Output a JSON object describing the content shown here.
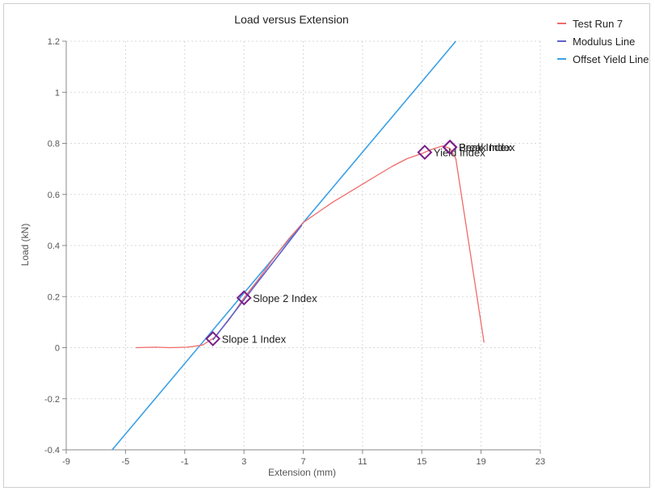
{
  "chart_data": {
    "type": "line",
    "title": "Load versus Extension",
    "xlabel": "Extension (mm)",
    "ylabel": "Load (kN)",
    "xlim": [
      -9,
      23
    ],
    "ylim": [
      -0.4,
      1.2
    ],
    "xticks": [
      -9,
      -5,
      -1,
      3,
      7,
      11,
      15,
      19,
      23
    ],
    "yticks": [
      -0.4,
      -0.2,
      0,
      0.2,
      0.4,
      0.6,
      0.8,
      1,
      1.2
    ],
    "grid": true,
    "legend_position": "top-right",
    "series": [
      {
        "name": "Test Run 7",
        "color": "#f06a6a",
        "points": [
          [
            -4.3,
            0.0
          ],
          [
            -3.0,
            0.002
          ],
          [
            -2.0,
            0.0
          ],
          [
            -0.8,
            0.002
          ],
          [
            0.2,
            0.01
          ],
          [
            1.0,
            0.04
          ],
          [
            2.0,
            0.11
          ],
          [
            3.0,
            0.195
          ],
          [
            4.0,
            0.27
          ],
          [
            5.0,
            0.35
          ],
          [
            6.0,
            0.425
          ],
          [
            7.0,
            0.49
          ],
          [
            8.0,
            0.53
          ],
          [
            9.0,
            0.57
          ],
          [
            10.0,
            0.605
          ],
          [
            11.0,
            0.64
          ],
          [
            12.0,
            0.675
          ],
          [
            13.0,
            0.71
          ],
          [
            14.0,
            0.74
          ],
          [
            15.0,
            0.76
          ],
          [
            15.6,
            0.775
          ],
          [
            16.4,
            0.79
          ],
          [
            16.9,
            0.78
          ],
          [
            17.3,
            0.74
          ],
          [
            19.2,
            0.02
          ]
        ]
      },
      {
        "name": "Modulus Line",
        "color": "#6060c8",
        "points": [
          [
            0.9,
            0.03
          ],
          [
            6.9,
            0.48
          ]
        ]
      },
      {
        "name": "Offset Yield Line",
        "color": "#3aa0e6",
        "points": [
          [
            -5.9,
            -0.4
          ],
          [
            17.3,
            1.2
          ]
        ]
      }
    ],
    "annotations": [
      {
        "label": "Slope 1 Index",
        "x": 0.9,
        "y": 0.035
      },
      {
        "label": "Slope 2 Index",
        "x": 3.0,
        "y": 0.195
      },
      {
        "label": "Yield Index",
        "x": 15.2,
        "y": 0.765
      },
      {
        "label": "Break Index",
        "x": 16.9,
        "y": 0.785
      },
      {
        "label": "Peak Index",
        "x": 16.9,
        "y": 0.785
      }
    ],
    "marker_color": "#7a1f86"
  }
}
